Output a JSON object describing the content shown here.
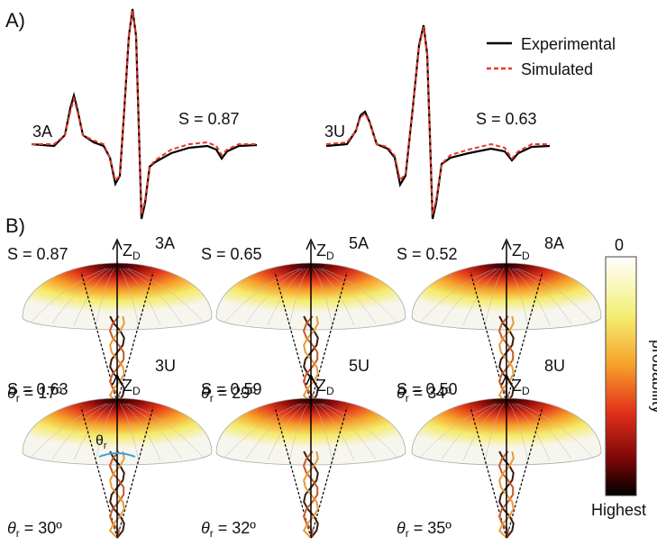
{
  "panel_a": {
    "label": "A)",
    "legend": [
      "Experimental",
      "Simulated"
    ],
    "spectra": [
      {
        "sample": "3A",
        "score": "S = 0.87"
      },
      {
        "sample": "3U",
        "score": "S = 0.63"
      }
    ]
  },
  "panel_b": {
    "label": "B)",
    "axis": {
      "main": "Z",
      "sub": "D"
    },
    "angle": {
      "main": "θ",
      "sub": "r"
    },
    "cells": [
      {
        "sample": "3A",
        "score": "S = 0.87",
        "theta": " = 17º"
      },
      {
        "sample": "5A",
        "score": "S = 0.65",
        "theta": " = 29º"
      },
      {
        "sample": "8A",
        "score": "S = 0.52",
        "theta": " = 34º"
      },
      {
        "sample": "3U",
        "score": "S = 0.63",
        "theta": " = 30º"
      },
      {
        "sample": "5U",
        "score": "S = 0.59",
        "theta": " = 32º"
      },
      {
        "sample": "8U",
        "score": "S = 0.50",
        "theta": " = 35º"
      }
    ],
    "colorbar": {
      "top": "0",
      "bottom": "Highest",
      "title": "probability"
    }
  }
}
